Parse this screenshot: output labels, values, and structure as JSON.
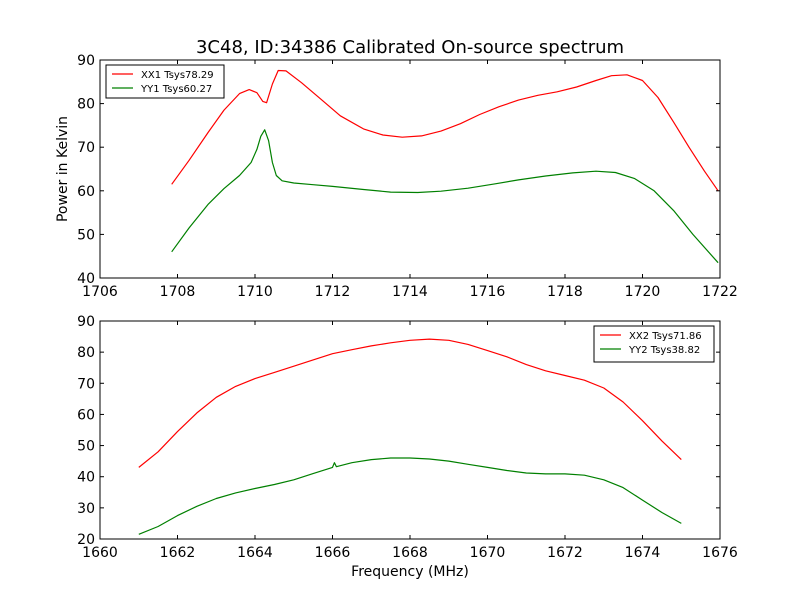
{
  "figure": {
    "title": "3C48, ID:34386 Calibrated On-source spectrum",
    "ylabel": "Power in Kelvin",
    "xlabel": "Frequency (MHz)"
  },
  "chart_data": [
    {
      "type": "line",
      "title": "3C48, ID:34386 Calibrated On-source spectrum",
      "ylabel": "Power in Kelvin",
      "xlabel": "",
      "xlim": [
        1706,
        1722
      ],
      "ylim": [
        40,
        90
      ],
      "xticks": [
        1706,
        1708,
        1710,
        1712,
        1714,
        1716,
        1718,
        1720,
        1722
      ],
      "yticks": [
        40,
        50,
        60,
        70,
        80,
        90
      ],
      "legend": "top-left",
      "grid": false,
      "series": [
        {
          "name": "XX1 Tsys78.29",
          "color": "#ff0000",
          "x": [
            1707.85,
            1708.3,
            1708.8,
            1709.2,
            1709.6,
            1709.85,
            1710.05,
            1710.2,
            1710.3,
            1710.45,
            1710.6,
            1710.8,
            1711.2,
            1711.7,
            1712.2,
            1712.8,
            1713.3,
            1713.8,
            1714.3,
            1714.8,
            1715.3,
            1715.8,
            1716.3,
            1716.8,
            1717.3,
            1717.8,
            1718.3,
            1718.8,
            1719.2,
            1719.6,
            1720.0,
            1720.4,
            1720.8,
            1721.2,
            1721.6,
            1721.95
          ],
          "y": [
            61.5,
            67,
            73.5,
            78.5,
            82.3,
            83.2,
            82.5,
            80.5,
            80.2,
            84.5,
            87.6,
            87.5,
            84.8,
            81.0,
            77.2,
            74.2,
            72.8,
            72.3,
            72.6,
            73.7,
            75.4,
            77.5,
            79.3,
            80.8,
            81.9,
            82.7,
            83.8,
            85.3,
            86.4,
            86.6,
            85.3,
            81.4,
            75.8,
            70.0,
            64.5,
            60.0
          ]
        },
        {
          "name": "YY1 Tsys60.27",
          "color": "#008000",
          "x": [
            1707.85,
            1708.3,
            1708.8,
            1709.2,
            1709.6,
            1709.9,
            1710.05,
            1710.15,
            1710.25,
            1710.35,
            1710.45,
            1710.55,
            1710.7,
            1711.0,
            1711.5,
            1712.0,
            1712.8,
            1713.5,
            1714.2,
            1714.8,
            1715.5,
            1716.2,
            1716.8,
            1717.5,
            1718.2,
            1718.8,
            1719.3,
            1719.8,
            1720.3,
            1720.8,
            1721.3,
            1721.95
          ],
          "y": [
            46.0,
            51.5,
            57.0,
            60.5,
            63.5,
            66.5,
            69.5,
            72.5,
            74.0,
            71.5,
            66.5,
            63.5,
            62.3,
            61.8,
            61.4,
            61.0,
            60.3,
            59.7,
            59.6,
            59.9,
            60.6,
            61.6,
            62.5,
            63.4,
            64.1,
            64.5,
            64.2,
            62.8,
            60.0,
            55.5,
            50.0,
            43.5
          ]
        }
      ]
    },
    {
      "type": "line",
      "title": "",
      "ylabel": "",
      "xlabel": "Frequency (MHz)",
      "xlim": [
        1660,
        1676
      ],
      "ylim": [
        20,
        90
      ],
      "xticks": [
        1660,
        1662,
        1664,
        1666,
        1668,
        1670,
        1672,
        1674,
        1676
      ],
      "yticks": [
        20,
        30,
        40,
        50,
        60,
        70,
        80,
        90
      ],
      "legend": "top-right",
      "grid": false,
      "series": [
        {
          "name": "XX2 Tsys71.86",
          "color": "#ff0000",
          "x": [
            1661.0,
            1661.5,
            1662.0,
            1662.5,
            1663.0,
            1663.5,
            1664.0,
            1664.5,
            1665.0,
            1665.5,
            1666.0,
            1666.5,
            1667.0,
            1667.5,
            1668.0,
            1668.5,
            1669.0,
            1669.5,
            1670.0,
            1670.5,
            1671.0,
            1671.5,
            1672.0,
            1672.5,
            1673.0,
            1673.5,
            1674.0,
            1674.5,
            1675.0
          ],
          "y": [
            43.0,
            48.0,
            54.5,
            60.5,
            65.5,
            69.0,
            71.5,
            73.5,
            75.5,
            77.5,
            79.5,
            80.8,
            82.0,
            83.0,
            83.8,
            84.2,
            83.8,
            82.5,
            80.5,
            78.5,
            76.0,
            74.0,
            72.5,
            71.0,
            68.5,
            64.0,
            58.0,
            51.5,
            45.5
          ]
        },
        {
          "name": "YY2 Tsys38.82",
          "color": "#008000",
          "x": [
            1661.0,
            1661.5,
            1662.0,
            1662.5,
            1663.0,
            1663.5,
            1664.0,
            1664.5,
            1665.0,
            1665.5,
            1666.0,
            1666.05,
            1666.1,
            1666.5,
            1667.0,
            1667.5,
            1668.0,
            1668.5,
            1669.0,
            1669.5,
            1670.0,
            1670.5,
            1671.0,
            1671.5,
            1672.0,
            1672.5,
            1673.0,
            1673.5,
            1674.0,
            1674.5,
            1675.0
          ],
          "y": [
            21.5,
            24.0,
            27.5,
            30.5,
            33.0,
            34.8,
            36.2,
            37.5,
            39.0,
            41.0,
            43.0,
            44.5,
            43.2,
            44.5,
            45.5,
            46.0,
            46.0,
            45.7,
            45.0,
            44.0,
            43.0,
            42.0,
            41.2,
            40.9,
            40.9,
            40.5,
            39.0,
            36.5,
            32.5,
            28.5,
            25.0
          ]
        }
      ]
    }
  ]
}
